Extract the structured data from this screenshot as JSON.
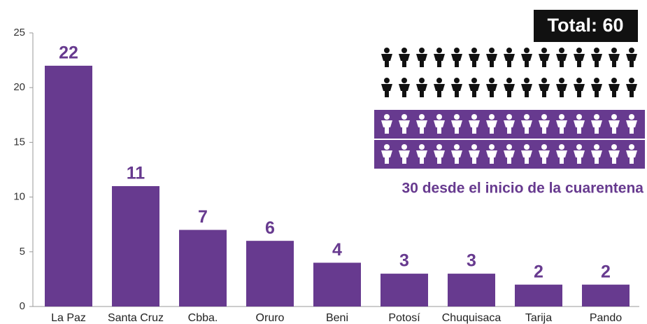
{
  "chart_data": {
    "type": "bar",
    "categories": [
      "La Paz",
      "Santa Cruz",
      "Cbba.",
      "Oruro",
      "Beni",
      "Potosí",
      "Chuquisaca",
      "Tarija",
      "Pando"
    ],
    "values": [
      22,
      11,
      7,
      6,
      4,
      3,
      3,
      2,
      2
    ],
    "color": "#673a8f",
    "ylim": [
      0,
      25
    ],
    "yticks": [
      0,
      5,
      10,
      15,
      20,
      25
    ],
    "grid": false,
    "annotations": [
      "Total: 60",
      "30 desde el inicio de la cuarentena"
    ]
  }
}
